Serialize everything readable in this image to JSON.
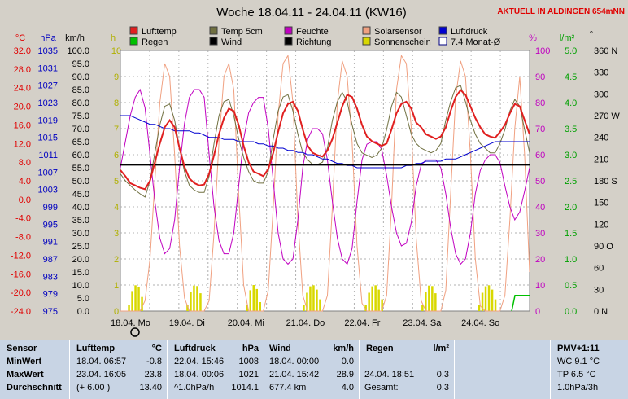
{
  "title": "Woche 18.04.11 - 24.04.11 (KW16)",
  "location_note": "AKTUELL IN ALDINGEN 654mNN",
  "colors": {
    "lufttemp": "#e02020",
    "temp5cm": "#707040",
    "feuchte": "#c000c0",
    "solarsensor": "#f0a080",
    "luftdruck": "#0000d0",
    "regen": "#00c000",
    "wind": "#000000",
    "richtung": "#000000",
    "sonnenschein": "#d8d800",
    "monat": "#000000"
  },
  "legend": [
    {
      "label": "Lufttemp",
      "key": "lufttemp"
    },
    {
      "label": "Temp 5cm",
      "key": "temp5cm"
    },
    {
      "label": "Feuchte",
      "key": "feuchte"
    },
    {
      "label": "Solarsensor",
      "key": "solarsensor"
    },
    {
      "label": "Luftdruck",
      "key": "luftdruck"
    },
    {
      "label": "Regen",
      "key": "regen"
    },
    {
      "label": "Wind",
      "key": "wind"
    },
    {
      "label": "Richtung",
      "key": "richtung"
    },
    {
      "label": "Sonnenschein",
      "key": "sonnenschein"
    },
    {
      "label": "7.4 Monat-Ø",
      "key": "monat"
    }
  ],
  "axis_headers": {
    "temp": "°C",
    "pressure": "hPa",
    "wind": "km/h",
    "hours": "h",
    "humidity": "%",
    "rain": "l/m²",
    "direction": "°"
  },
  "chart_data": {
    "type": "line",
    "x_labels": [
      "18.04. Mo",
      "19.04. Di",
      "20.04. Mi",
      "21.04. Do",
      "22.04. Fr",
      "23.04. Sa",
      "24.04. So"
    ],
    "temp_ticks": [
      "32.0",
      "28.0",
      "24.0",
      "20.0",
      "16.0",
      "12.0",
      "8.0",
      "4.0",
      "0.0",
      "-4.0",
      "-8.0",
      "-12.0",
      "-16.0",
      "-20.0",
      "-24.0"
    ],
    "pressure_ticks": [
      "1035",
      "1031",
      "1027",
      "1023",
      "1019",
      "1015",
      "1011",
      "1007",
      "1003",
      "999",
      "995",
      "991",
      "987",
      "983",
      "979",
      "975"
    ],
    "wind_ticks": [
      "100.0",
      "95.0",
      "90.0",
      "85.0",
      "80.0",
      "75.0",
      "70.0",
      "65.0",
      "60.0",
      "55.0",
      "50.0",
      "45.0",
      "40.0",
      "35.0",
      "30.0",
      "25.0",
      "20.0",
      "15.0",
      "10.0",
      "5.0",
      "0.0"
    ],
    "hours_ticks": [
      "10",
      "9",
      "8",
      "7",
      "6",
      "5",
      "4",
      "3",
      "2",
      "1",
      "0"
    ],
    "humidity_ticks": [
      "100",
      "90",
      "80",
      "70",
      "60",
      "50",
      "40",
      "30",
      "20",
      "10",
      "0"
    ],
    "rain_ticks": [
      "5.0",
      "4.5",
      "4.0",
      "3.5",
      "3.0",
      "2.5",
      "2.0",
      "1.5",
      "1.0",
      "0.5",
      "0.0"
    ],
    "direction_ticks": [
      "360 N",
      "330",
      "300",
      "270 W",
      "240",
      "210",
      "180 S",
      "150",
      "120",
      "90 O",
      "60",
      "30",
      "0 N"
    ],
    "temp_range": [
      -24,
      32
    ],
    "temp_month_avg": 7.4,
    "lufttemp": [
      6.3,
      5.0,
      3.5,
      3.0,
      2.5,
      2.2,
      4.0,
      8.0,
      12.0,
      15.5,
      17.0,
      15.5,
      11.0,
      7.0,
      4.5,
      3.5,
      3.0,
      3.2,
      5.5,
      9.5,
      14.0,
      17.5,
      19.5,
      19.0,
      16.0,
      11.5,
      8.0,
      6.0,
      5.5,
      5.0,
      6.5,
      10.0,
      14.5,
      18.5,
      20.5,
      21.0,
      19.0,
      15.0,
      11.5,
      10.0,
      9.5,
      9.2,
      10.5,
      13.0,
      16.5,
      20.0,
      22.5,
      22.0,
      19.5,
      16.0,
      13.5,
      12.5,
      12.0,
      11.5,
      12.0,
      15.0,
      18.5,
      20.5,
      21.0,
      19.5,
      16.5,
      15.5,
      14.0,
      13.5,
      13.0,
      13.5,
      15.5,
      19.0,
      22.0,
      23.5,
      22.5,
      20.0,
      17.5,
      15.5,
      14.0,
      13.5,
      13.2,
      14.5,
      16.0,
      18.5,
      20.5,
      20.0,
      17.0,
      14.0
    ],
    "temp5cm": [
      5.5,
      4.0,
      3.0,
      2.0,
      1.2,
      0.5,
      4.0,
      10.0,
      16.0,
      20.0,
      20.5,
      17.0,
      11.0,
      6.0,
      3.0,
      2.0,
      1.5,
      1.5,
      5.0,
      12.0,
      18.0,
      21.0,
      21.5,
      18.0,
      13.0,
      9.0,
      6.0,
      4.0,
      3.5,
      3.5,
      6.0,
      13.0,
      19.0,
      22.0,
      22.5,
      19.0,
      14.0,
      10.0,
      8.5,
      7.5,
      7.5,
      8.0,
      11.0,
      17.0,
      21.0,
      23.0,
      21.0,
      16.0,
      12.0,
      10.0,
      9.5,
      9.0,
      9.5,
      11.0,
      15.0,
      20.0,
      23.0,
      22.0,
      18.0,
      14.0,
      12.0,
      11.0,
      10.5,
      10.0,
      10.5,
      12.0,
      17.0,
      21.0,
      24.0,
      24.5,
      21.0,
      17.0,
      14.0,
      12.0,
      11.0,
      10.0,
      10.0,
      12.0,
      15.0,
      19.0,
      21.5,
      20.0,
      15.0,
      10.0
    ],
    "feuchte": [
      55,
      65,
      75,
      82,
      85,
      78,
      60,
      42,
      28,
      22,
      24,
      35,
      55,
      72,
      82,
      85,
      85,
      82,
      60,
      40,
      27,
      22,
      22,
      30,
      48,
      66,
      76,
      80,
      82,
      82,
      70,
      50,
      30,
      20,
      18,
      20,
      35,
      55,
      66,
      70,
      70,
      68,
      58,
      42,
      28,
      20,
      18,
      24,
      42,
      58,
      64,
      65,
      65,
      62,
      52,
      40,
      30,
      25,
      26,
      34,
      48,
      56,
      58,
      58,
      58,
      55,
      45,
      32,
      22,
      18,
      20,
      30,
      45,
      54,
      58,
      60,
      60,
      57,
      48,
      40,
      35,
      38,
      46,
      55
    ],
    "solarsensor": [
      0,
      0,
      0,
      0,
      0,
      40,
      200,
      500,
      800,
      950,
      900,
      600,
      250,
      50,
      0,
      0,
      0,
      0,
      40,
      300,
      650,
      900,
      950,
      850,
      450,
      100,
      0,
      0,
      0,
      0,
      80,
      400,
      750,
      950,
      980,
      800,
      350,
      60,
      0,
      0,
      0,
      0,
      60,
      400,
      800,
      960,
      900,
      650,
      250,
      30,
      0,
      0,
      0,
      0,
      60,
      400,
      850,
      980,
      950,
      700,
      280,
      40,
      0,
      0,
      0,
      0,
      80,
      450,
      820,
      960,
      900,
      600,
      200,
      20,
      0,
      0,
      0,
      0,
      60,
      350,
      700,
      900,
      600,
      150
    ],
    "luftdruck": [
      1020,
      1020,
      1020,
      1019.5,
      1019,
      1018.5,
      1018,
      1018,
      1017.5,
      1017,
      1017,
      1016.5,
      1016.5,
      1016.5,
      1016.5,
      1016,
      1016,
      1015.5,
      1015,
      1015,
      1015,
      1014.5,
      1014.5,
      1014.5,
      1014,
      1014,
      1014,
      1014,
      1013.5,
      1013.5,
      1013,
      1013,
      1012.5,
      1012.5,
      1012,
      1012,
      1011.5,
      1011.5,
      1011,
      1011,
      1010.5,
      1010,
      1010,
      1009.5,
      1009,
      1009,
      1008.5,
      1008.5,
      1008,
      1008,
      1008,
      1008,
      1008,
      1008,
      1008,
      1008,
      1008,
      1008,
      1008.5,
      1008.5,
      1009,
      1009,
      1009.5,
      1009.5,
      1009.5,
      1009.5,
      1010,
      1010,
      1010,
      1010.5,
      1011,
      1011.5,
      1012,
      1012.5,
      1013,
      1013.5,
      1014,
      1014,
      1014,
      1014,
      1014,
      1014,
      1014,
      1014
    ],
    "sunshine_days": [
      {
        "x0": 0.13,
        "x1": 0.38
      },
      {
        "x0": 1.13,
        "x1": 1.4
      },
      {
        "x0": 2.15,
        "x1": 2.38
      },
      {
        "x0": 3.12,
        "x1": 3.42
      },
      {
        "x0": 4.18,
        "x1": 4.48
      },
      {
        "x0": 5.15,
        "x1": 5.42
      },
      {
        "x0": 6.12,
        "x1": 6.42
      }
    ],
    "regen_total": 0.3
  },
  "table": {
    "headers": {
      "sensor": "Sensor",
      "lufttemp": "Lufttemp",
      "lufttemp_unit": "°C",
      "luftdruck": "Luftdruck",
      "luftdruck_unit": "hPa",
      "wind": "Wind",
      "wind_unit": "km/h",
      "regen": "Regen",
      "regen_unit": "l/m²",
      "pmv": "PMV+1:11"
    },
    "rows": [
      {
        "label": "MinWert",
        "lt_time": "18.04.  06:57",
        "lt_val": "-0.8",
        "ld_time": "22.04.  15:46",
        "ld_val": "1008",
        "wd_time": "18.04.  00:00",
        "wd_val": "0.0",
        "rg_time": "",
        "rg_val": "",
        "pmv": "WC 9.1 °C"
      },
      {
        "label": "MaxWert",
        "lt_time": "23.04.  16:05",
        "lt_val": "23.8",
        "ld_time": "18.04.  00:06",
        "ld_val": "1021",
        "wd_time": "21.04.  15:42",
        "wd_val": "28.9",
        "rg_time": "24.04.  18:51",
        "rg_val": "0.3",
        "pmv": "TP 6.5 °C"
      },
      {
        "label": "Durchschnitt",
        "lt_time": "(+ 6.00 )",
        "lt_val": "13.40",
        "ld_time": "^1.0hPa/h",
        "ld_val": "1014.1",
        "wd_time": "677.4 km",
        "wd_val": "4.0",
        "rg_time": "Gesamt:",
        "rg_val": "0.3",
        "pmv": "1.0hPa/3h"
      }
    ]
  }
}
